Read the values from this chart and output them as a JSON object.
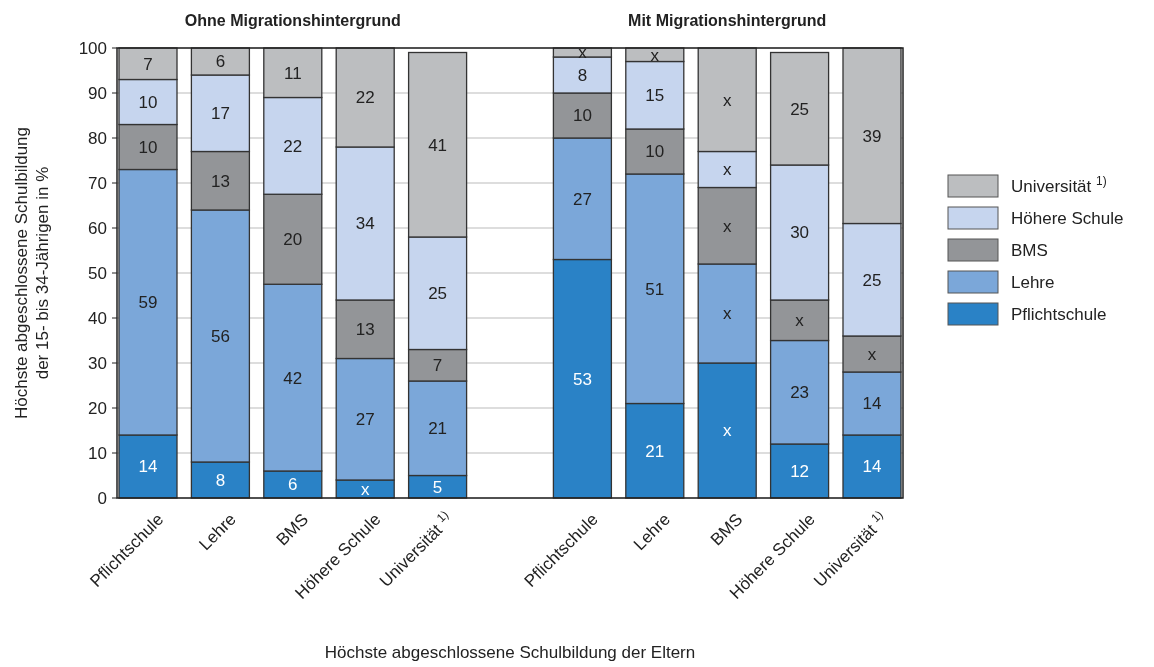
{
  "chart_data": {
    "type": "bar",
    "stacked": true,
    "ylabel": "Höchste abgeschlossene Schulbildung\nder 15- bis 34-Jährigen in %",
    "xlabel": "Höchste abgeschlossene Schulbildung der Eltern",
    "annotations": [
      "Ohne Migrationshintergrund",
      "Mit Migrationshintergrund"
    ],
    "categories": [
      "Pflichtschule",
      "Lehre",
      "BMS",
      "Höhere Schule",
      "Universität $^{1)}$",
      null,
      "Pflichtschule",
      "Lehre",
      "BMS",
      "Höhere Schule",
      "Universität $^{1)}$"
    ],
    "series": [
      {
        "name": "Pflichtschule",
        "color": "#2a82c6",
        "values": [
          14,
          8,
          6,
          4,
          5,
          null,
          53,
          21,
          30,
          12,
          14
        ],
        "value_labels": [
          "14",
          "8",
          "6",
          "x",
          "5",
          null,
          "53",
          "21",
          "x",
          "12",
          "14"
        ]
      },
      {
        "name": "Lehre",
        "color": "#7ba7d9",
        "values": [
          59,
          56,
          41.5,
          27,
          21,
          null,
          27,
          51,
          22,
          23,
          14
        ],
        "value_labels": [
          "59",
          "56",
          "42",
          "27",
          "21",
          null,
          "27",
          "51",
          "x",
          "23",
          "14"
        ]
      },
      {
        "name": "BMS",
        "color": "#939598",
        "values": [
          10,
          13,
          20,
          13,
          7,
          null,
          10,
          10,
          17,
          9,
          8
        ],
        "value_labels": [
          "10",
          "13",
          "20",
          "13",
          "7",
          null,
          "10",
          "10",
          "x",
          "x",
          "x"
        ]
      },
      {
        "name": "Höhere Schule",
        "color": "#c6d5ee",
        "values": [
          10,
          17,
          21.5,
          34,
          25,
          null,
          8,
          15,
          8,
          30,
          25
        ],
        "value_labels": [
          "10",
          "17",
          "22",
          "34",
          "25",
          null,
          "8",
          "15",
          "x",
          "30",
          "25"
        ]
      },
      {
        "name": "Universität $^{1)}$",
        "color": "#bcbec0",
        "values": [
          7,
          6,
          11,
          22,
          41,
          null,
          2,
          3,
          23,
          25,
          39
        ],
        "value_labels": [
          "7",
          "6",
          "11",
          "22",
          "41",
          null,
          "x",
          "x",
          "x",
          "25",
          "39"
        ]
      }
    ],
    "ylim": [
      0,
      100
    ],
    "yticks": [
      0,
      10,
      20,
      30,
      40,
      50,
      60,
      70,
      80,
      90,
      100
    ],
    "grid": "y",
    "legend": "right"
  }
}
